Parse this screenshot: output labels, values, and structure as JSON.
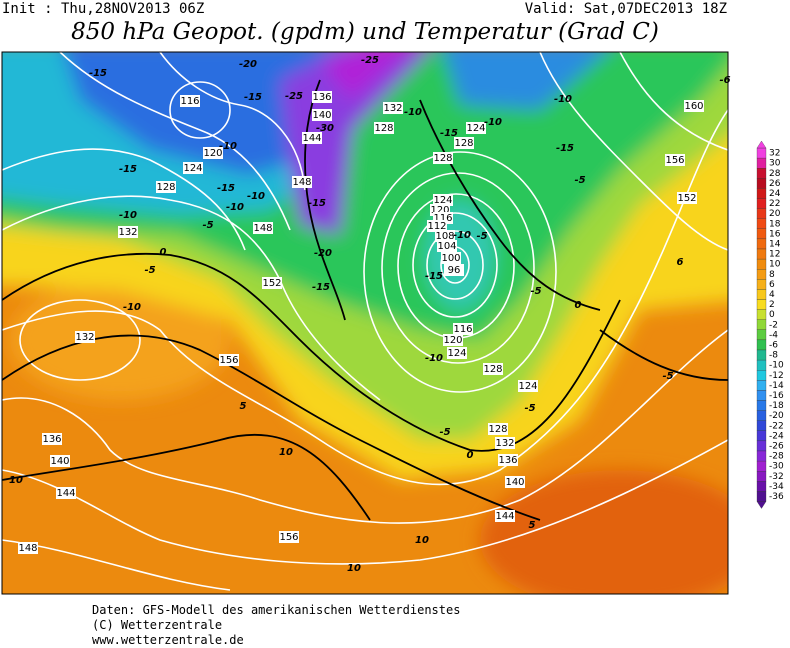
{
  "header": {
    "init": "Init : Thu,28NOV2013 06Z",
    "valid": "Valid: Sat,07DEC2013 18Z",
    "title": "850 hPa Geopot. (gpdm) und Temperatur (Grad C)"
  },
  "colorbar": {
    "levels": [
      32,
      30,
      28,
      26,
      24,
      22,
      20,
      18,
      16,
      14,
      12,
      10,
      8,
      6,
      4,
      2,
      0,
      -2,
      -4,
      -6,
      -8,
      -10,
      -12,
      -14,
      -16,
      -18,
      -20,
      -22,
      -24,
      -26,
      -28,
      -30,
      -32,
      -34,
      -36
    ]
  },
  "map": {
    "geopotential_labels": [
      116,
      136,
      140,
      144,
      148,
      120,
      124,
      128,
      132,
      148,
      152,
      156,
      132,
      136,
      140,
      144,
      148,
      156,
      132,
      128,
      124,
      128,
      128,
      124,
      120,
      116,
      112,
      108,
      104,
      100,
      96,
      116,
      120,
      124,
      128,
      124,
      128,
      132,
      136,
      140,
      144,
      156,
      152,
      160
    ],
    "temperature_labels": [
      -15,
      -20,
      -25,
      -15,
      -25,
      -30,
      -10,
      -15,
      -10,
      -10,
      -15,
      -5,
      -15,
      -10,
      -15,
      -10,
      -10,
      -5,
      -10,
      -15,
      -20,
      -15,
      0,
      -5,
      -10,
      -5,
      -10,
      -15,
      -5,
      0,
      -10,
      -5,
      0,
      -5,
      5,
      10,
      10,
      5,
      10,
      10,
      -5,
      6,
      -6
    ]
  },
  "footer": {
    "line1": "Daten: GFS-Modell des amerikanischen Wetterdienstes",
    "line2": "(C) Wetterzentrale",
    "line3": "www.wetterzentrale.de"
  }
}
